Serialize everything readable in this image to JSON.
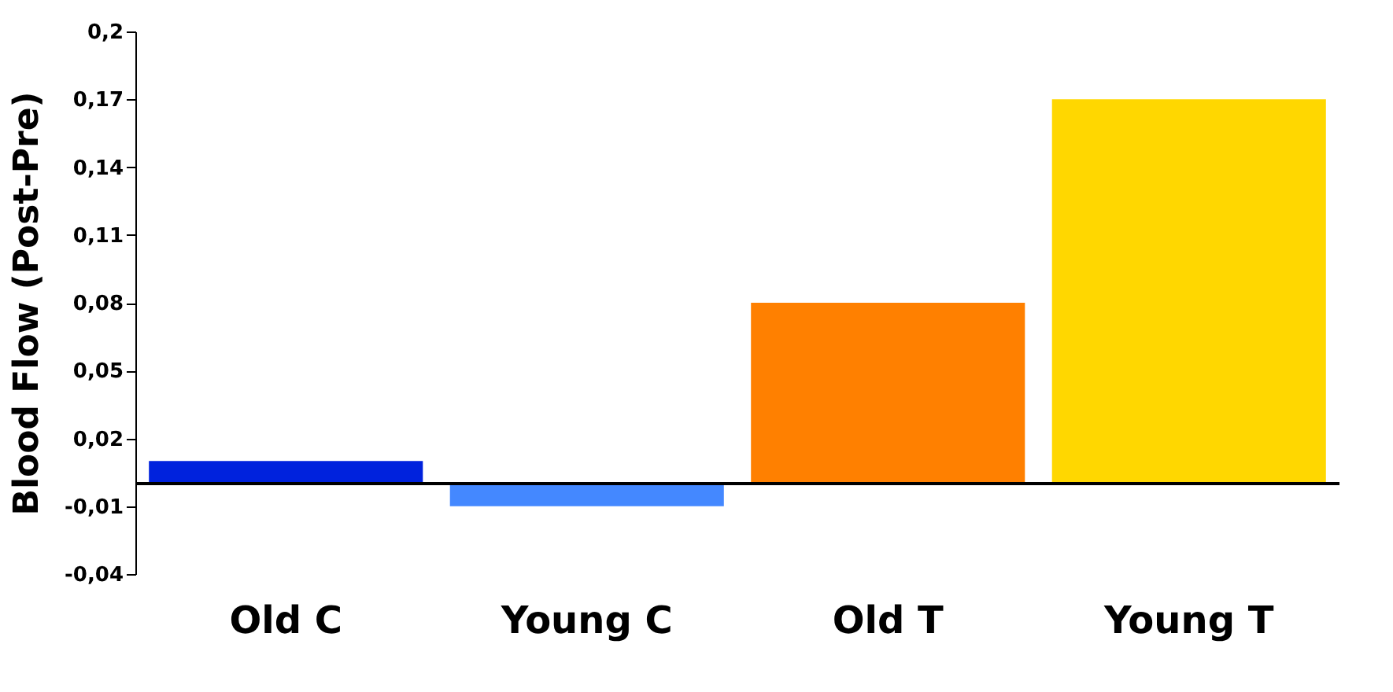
{
  "chart_data": {
    "type": "bar",
    "ylabel": "Blood Flow (Post-Pre)",
    "categories": [
      "Old C",
      "Young C",
      "Old T",
      "Young T"
    ],
    "values": [
      0.01,
      -0.01,
      0.08,
      0.17
    ],
    "colors": [
      "#0022dd",
      "#4488ff",
      "#ff8000",
      "#ffd700"
    ],
    "ylim": [
      -0.04,
      0.2
    ],
    "yticks": [
      {
        "value": -0.04,
        "label": "-0,04"
      },
      {
        "value": -0.01,
        "label": "-0,01"
      },
      {
        "value": 0.02,
        "label": "0,02"
      },
      {
        "value": 0.05,
        "label": "0,05"
      },
      {
        "value": 0.08,
        "label": "0,08"
      },
      {
        "value": 0.11,
        "label": "0,11"
      },
      {
        "value": 0.14,
        "label": "0,14"
      },
      {
        "value": 0.17,
        "label": "0,17"
      },
      {
        "value": 0.2,
        "label": "0,2"
      }
    ],
    "grid": false
  }
}
